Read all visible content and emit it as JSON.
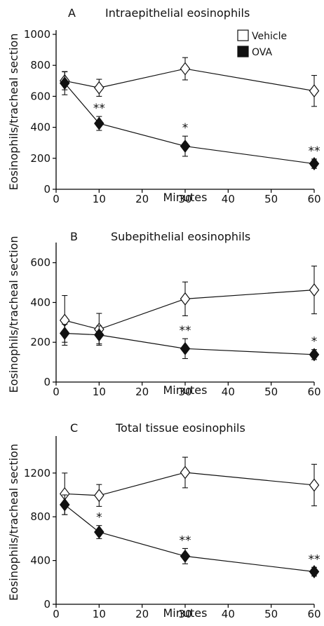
{
  "colors": {
    "vehicle_fill": "#ffffff",
    "ova_fill": "#111111",
    "stroke": "#111111"
  },
  "legend": {
    "vehicle_label": "Vehicle",
    "ova_label": "OVA",
    "placement": "top-right"
  },
  "chart_data": [
    {
      "type": "line",
      "panel_letter": "A",
      "title": "Intraepithelial eosinophils",
      "xlabel": "Minutes",
      "ylabel": "Eosinophils/tracheal section",
      "xlim": [
        0,
        60
      ],
      "ylim": [
        0,
        1000
      ],
      "x_ticks": [
        0,
        10,
        20,
        30,
        40,
        50,
        60
      ],
      "y_ticks": [
        0,
        200,
        400,
        600,
        800,
        1000
      ],
      "legend_shown": true,
      "series": [
        {
          "name": "Vehicle",
          "marker": "open-diamond",
          "x": [
            2,
            10,
            30,
            60
          ],
          "y": [
            700,
            655,
            778,
            635
          ],
          "err": [
            58,
            55,
            72,
            100
          ]
        },
        {
          "name": "OVA",
          "marker": "filled-diamond",
          "x": [
            2,
            10,
            30,
            60
          ],
          "y": [
            685,
            425,
            278,
            165
          ],
          "err": [
            75,
            45,
            65,
            30
          ]
        }
      ],
      "annotations": [
        {
          "x": 10,
          "y": 425,
          "err": 45,
          "text": "**"
        },
        {
          "x": 30,
          "y": 278,
          "err": 65,
          "text": "*"
        },
        {
          "x": 60,
          "y": 165,
          "err": 30,
          "text": "**"
        }
      ]
    },
    {
      "type": "line",
      "panel_letter": "B",
      "title": "Subepithelial eosinophils",
      "xlabel": "Minutes",
      "ylabel": "Eosinophils/tracheal section",
      "xlim": [
        0,
        60
      ],
      "ylim": [
        0,
        680
      ],
      "x_ticks": [
        0,
        10,
        20,
        30,
        40,
        50,
        60
      ],
      "y_ticks": [
        0,
        200,
        400,
        600
      ],
      "legend_shown": false,
      "series": [
        {
          "name": "Vehicle",
          "marker": "open-diamond",
          "x": [
            2,
            10,
            30,
            60
          ],
          "y": [
            310,
            265,
            418,
            463
          ],
          "err": [
            125,
            80,
            85,
            120
          ]
        },
        {
          "name": "OVA",
          "marker": "filled-diamond",
          "x": [
            2,
            10,
            30,
            60
          ],
          "y": [
            245,
            237,
            168,
            138
          ],
          "err": [
            45,
            45,
            50,
            25
          ]
        }
      ],
      "annotations": [
        {
          "x": 30,
          "y": 168,
          "err": 50,
          "text": "**"
        },
        {
          "x": 60,
          "y": 138,
          "err": 25,
          "text": "*"
        }
      ]
    },
    {
      "type": "line",
      "panel_letter": "C",
      "title": "Total tissue eosinophils",
      "xlabel": "Minutes",
      "ylabel": "Eosinophils/tracheal section",
      "xlim": [
        0,
        60
      ],
      "ylim": [
        0,
        1500
      ],
      "x_ticks": [
        0,
        10,
        20,
        30,
        40,
        50,
        60
      ],
      "y_ticks": [
        0,
        400,
        800,
        1200
      ],
      "legend_shown": false,
      "series": [
        {
          "name": "Vehicle",
          "marker": "open-diamond",
          "x": [
            2,
            10,
            30,
            60
          ],
          "y": [
            1010,
            995,
            1205,
            1090
          ],
          "err": [
            190,
            100,
            140,
            190
          ]
        },
        {
          "name": "OVA",
          "marker": "filled-diamond",
          "x": [
            2,
            10,
            30,
            60
          ],
          "y": [
            910,
            660,
            440,
            298
          ],
          "err": [
            90,
            60,
            70,
            40
          ]
        }
      ],
      "annotations": [
        {
          "x": 10,
          "y": 660,
          "err": 60,
          "text": "*"
        },
        {
          "x": 30,
          "y": 440,
          "err": 70,
          "text": "**"
        },
        {
          "x": 60,
          "y": 298,
          "err": 40,
          "text": "**"
        }
      ]
    }
  ]
}
